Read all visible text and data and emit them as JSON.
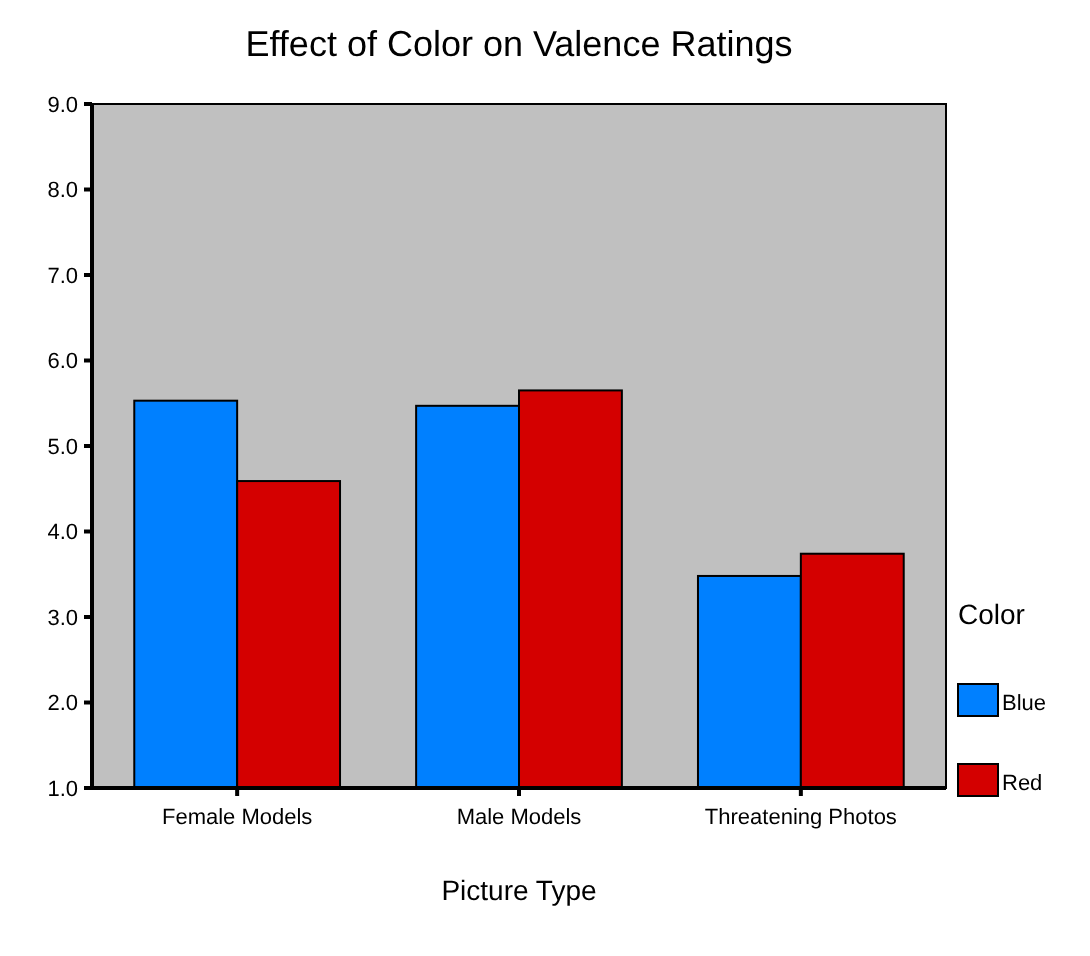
{
  "chart_data": {
    "type": "bar",
    "title": "Effect of Color on Valence Ratings",
    "xlabel": "Picture Type",
    "legend_title": "Color",
    "categories": [
      "Female Models",
      "Male Models",
      "Threatening Photos"
    ],
    "series": [
      {
        "name": "Blue",
        "color": "#0080ff",
        "values": [
          5.53,
          5.47,
          3.48
        ]
      },
      {
        "name": "Red",
        "color": "#d40000",
        "values": [
          4.59,
          5.65,
          3.74
        ]
      }
    ],
    "ylim": [
      1,
      9
    ],
    "yticks": [
      {
        "value": 1,
        "label": "1.0"
      },
      {
        "value": 2,
        "label": "2.0"
      },
      {
        "value": 3,
        "label": "3.0"
      },
      {
        "value": 4,
        "label": "4.0"
      },
      {
        "value": 5,
        "label": "5.0"
      },
      {
        "value": 6,
        "label": "6.0"
      },
      {
        "value": 7,
        "label": "7.0"
      },
      {
        "value": 8,
        "label": "8.0"
      },
      {
        "value": 9,
        "label": "9.0"
      }
    ],
    "grid": false,
    "legend": "right"
  }
}
